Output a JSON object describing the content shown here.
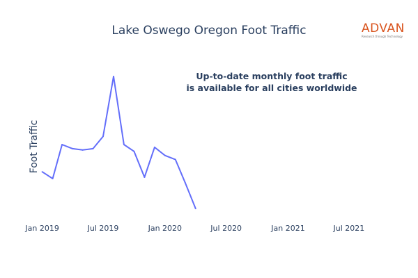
{
  "chart_data": {
    "type": "line",
    "title": "Lake Oswego Oregon Foot Traffic",
    "ylabel": "Foot Traffic",
    "xlabel": "",
    "annotation": [
      "Up-to-date monthly foot traffic",
      "is available for all cities worldwide"
    ],
    "x_ticks": [
      "Jan 2019",
      "Jul 2019",
      "Jan 2020",
      "Jul 2020",
      "Jan 2021",
      "Jul 2021"
    ],
    "x_range": [
      "2018-12-10",
      "2021-09-20"
    ],
    "y_range": [
      0,
      100
    ],
    "y_tick_labels_visible": false,
    "grid": false,
    "line_color": "#636efa",
    "series": [
      {
        "x": [
          "2019-01",
          "2019-02",
          "2019-03",
          "2019-04",
          "2019-05",
          "2019-06",
          "2019-07",
          "2019-08",
          "2019-09",
          "2019-10",
          "2019-11",
          "2019-12",
          "2020-01",
          "2020-02",
          "2020-03",
          "2020-04"
        ],
        "values": [
          30,
          25,
          50,
          47,
          46,
          47,
          56,
          100,
          50,
          45,
          26,
          48,
          42,
          39,
          22,
          3
        ]
      }
    ]
  },
  "logo": {
    "word": "ADVAN",
    "tagline": "Research through Technology",
    "color": "#d9541e"
  }
}
